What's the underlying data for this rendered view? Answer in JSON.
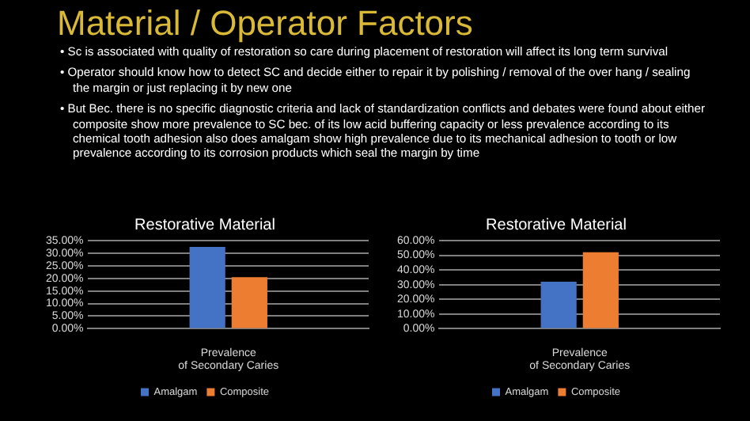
{
  "chart_data": [
    {
      "type": "other",
      "title": "Material / Operator Factors",
      "annotations": [
        "• Sc is associated with quality of restoration so care during placement of restoration will affect its long term survival",
        "• Operator should know how to detect SC and decide either to repair it by polishing / removal of the over hang / sealing the margin or just replacing it by new one",
        "• But Bec. there is no specific diagnostic criteria and lack of standardization conflicts and debates were found about either composite show more prevalence to SC bec. of its low acid buffering capacity or less prevalence according to its chemical tooth adhesion also does amalgam show high prevalence due to its mechanical adhesion to tooth or low prevalence according to its corrosion products which seal the margin by time"
      ]
    },
    {
      "type": "bar",
      "title": "Restorative Material",
      "categories": [
        "Prevalence of Secondary Caries"
      ],
      "series": [
        {
          "name": "Amalgam",
          "color": "#4472c4",
          "values": [
            32.5
          ]
        },
        {
          "name": "Composite",
          "color": "#ed7d31",
          "values": [
            20.5
          ]
        }
      ],
      "ylim": [
        0,
        35
      ],
      "yticks": [
        {
          "value": 0,
          "label": "0.00%"
        },
        {
          "value": 5,
          "label": "5.00%"
        },
        {
          "value": 10,
          "label": "10.00%"
        },
        {
          "value": 15,
          "label": "15.00%"
        },
        {
          "value": 20,
          "label": "20.00%"
        },
        {
          "value": 25,
          "label": "25.00%"
        },
        {
          "value": 30,
          "label": "30.00%"
        },
        {
          "value": 35,
          "label": "35.00%"
        }
      ],
      "grid": "y",
      "legend": "bottom"
    },
    {
      "type": "bar",
      "title": "Restorative Material",
      "categories": [
        "Prevalence of Secondary Caries"
      ],
      "series": [
        {
          "name": "Amalgam",
          "color": "#4472c4",
          "values": [
            32
          ]
        },
        {
          "name": "Composite",
          "color": "#ed7d31",
          "values": [
            52
          ]
        }
      ],
      "ylim": [
        0,
        60
      ],
      "yticks": [
        {
          "value": 0,
          "label": "0.00%"
        },
        {
          "value": 10,
          "label": "10.00%"
        },
        {
          "value": 20,
          "label": "20.00%"
        },
        {
          "value": 30,
          "label": "30.00%"
        },
        {
          "value": 40,
          "label": "40.00%"
        },
        {
          "value": 50,
          "label": "50.00%"
        },
        {
          "value": 60,
          "label": "60.00%"
        }
      ],
      "grid": "y",
      "legend": "bottom"
    }
  ]
}
